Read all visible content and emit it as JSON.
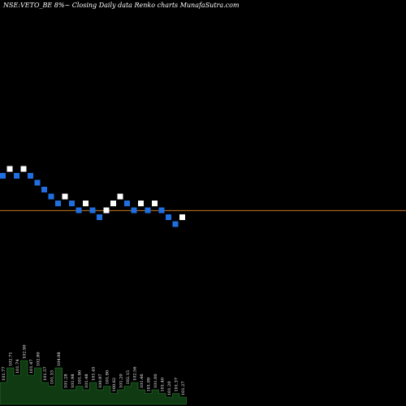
{
  "chart_data": {
    "type": "renko",
    "title": "NSE:VETO_BE 8%~  Closing Daily data  Renko  charts MunafaSutra.com",
    "colors": {
      "background": "#000000",
      "up_brick": "#ffffff",
      "down_brick": "#1f6fe0",
      "reference_line": "#c87a1e",
      "volume_fill": "#0f3a12",
      "volume_edge": "#2e7d2e"
    },
    "bricks": [
      {
        "level": 0,
        "dir": "down"
      },
      {
        "level": 1,
        "dir": "up"
      },
      {
        "level": 0,
        "dir": "down"
      },
      {
        "level": 1,
        "dir": "up"
      },
      {
        "level": 0,
        "dir": "down"
      },
      {
        "level": -1,
        "dir": "down"
      },
      {
        "level": -2,
        "dir": "down"
      },
      {
        "level": -3,
        "dir": "down"
      },
      {
        "level": -4,
        "dir": "down"
      },
      {
        "level": -3,
        "dir": "up"
      },
      {
        "level": -4,
        "dir": "down"
      },
      {
        "level": -5,
        "dir": "down"
      },
      {
        "level": -4,
        "dir": "up"
      },
      {
        "level": -5,
        "dir": "down"
      },
      {
        "level": -6,
        "dir": "down"
      },
      {
        "level": -5,
        "dir": "up"
      },
      {
        "level": -4,
        "dir": "up"
      },
      {
        "level": -3,
        "dir": "up"
      },
      {
        "level": -4,
        "dir": "down"
      },
      {
        "level": -5,
        "dir": "down"
      },
      {
        "level": -4,
        "dir": "up"
      },
      {
        "level": -5,
        "dir": "down"
      },
      {
        "level": -4,
        "dir": "up"
      },
      {
        "level": -5,
        "dir": "down"
      },
      {
        "level": -6,
        "dir": "down"
      },
      {
        "level": -7,
        "dir": "down"
      },
      {
        "level": -6,
        "dir": "up"
      }
    ],
    "reference_level": -5.4,
    "volume_labels": [
      "101.77",
      "102.71",
      "101.74",
      "102.90",
      "101.47",
      "102.80",
      "101.57",
      "101.33",
      "104.98",
      "101.28",
      "101.98",
      "101.90",
      "101.48",
      "101.45",
      "100.97",
      "101.90",
      "100.62",
      "101.20",
      "102.15",
      "102.56",
      "101.46",
      "101.09",
      "101.00",
      "101.40",
      "101.20",
      "101.37",
      "101.27"
    ],
    "volume_values": [
      3,
      5,
      4,
      6,
      4,
      5,
      3,
      2.5,
      5,
      2,
      2,
      2.5,
      2,
      3,
      2,
      2.5,
      1.5,
      2,
      2.5,
      3,
      2,
      1.5,
      2,
      1.5,
      1,
      1.5,
      1
    ]
  }
}
